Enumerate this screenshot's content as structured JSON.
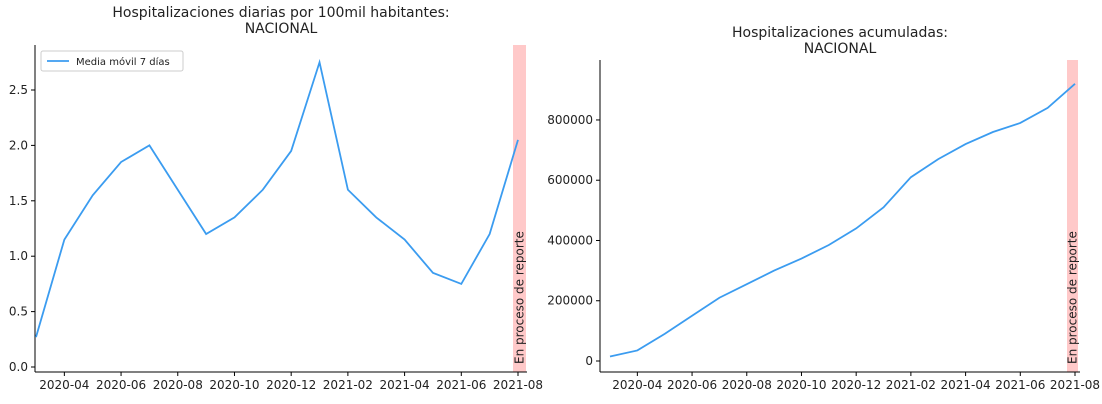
{
  "chart_data": [
    {
      "type": "line",
      "title": [
        "Hospitalizaciones diarias por 100mil habitantes:",
        "NACIONAL"
      ],
      "x": [
        "2020-03",
        "2020-04",
        "2020-05",
        "2020-06",
        "2020-07",
        "2020-08",
        "2020-09",
        "2020-10",
        "2020-11",
        "2020-12",
        "2021-01",
        "2021-02",
        "2021-03",
        "2021-04",
        "2021-05",
        "2021-06",
        "2021-07",
        "2021-08"
      ],
      "series": [
        {
          "name": "Media móvil 7 días",
          "color": "#3b9cf0",
          "values": [
            0.27,
            1.15,
            1.55,
            1.85,
            2.0,
            1.6,
            1.2,
            1.35,
            1.6,
            1.95,
            2.75,
            1.6,
            1.35,
            1.15,
            0.85,
            0.75,
            1.2,
            2.05
          ]
        }
      ],
      "xlim": [
        "2020-03",
        "2021-08"
      ],
      "xticks": [
        "2020-04",
        "2020-06",
        "2020-08",
        "2020-10",
        "2020-12",
        "2021-02",
        "2021-04",
        "2021-06",
        "2021-08"
      ],
      "ylim": [
        -0.045,
        2.906
      ],
      "yticks": [
        {
          "value": 0,
          "label": "0.0"
        },
        0.5,
        {
          "value": 1,
          "label": "1.0"
        },
        1.5,
        {
          "value": 2,
          "label": "2.0"
        },
        2.5
      ],
      "annotation": "En proceso de reporte",
      "legend": "upper left"
    },
    {
      "type": "line",
      "title": [
        "Hospitalizaciones acumuladas:",
        "NACIONAL"
      ],
      "x": [
        "2020-03",
        "2020-04",
        "2020-05",
        "2020-06",
        "2020-07",
        "2020-08",
        "2020-09",
        "2020-10",
        "2020-11",
        "2020-12",
        "2021-01",
        "2021-02",
        "2021-03",
        "2021-04",
        "2021-05",
        "2021-06",
        "2021-07",
        "2021-08"
      ],
      "series": [
        {
          "color": "#3b9cf0",
          "values": [
            15000,
            35000,
            90000,
            150000,
            210000,
            255000,
            300000,
            340000,
            385000,
            440000,
            510000,
            610000,
            670000,
            720000,
            760000,
            790000,
            840000,
            920000
          ]
        }
      ],
      "xlim": [
        "2020-03",
        "2021-08"
      ],
      "xticks": [
        "2020-04",
        "2020-06",
        "2020-08",
        "2020-10",
        "2020-12",
        "2021-02",
        "2021-04",
        "2021-06",
        "2021-08"
      ],
      "ylim": [
        -36500,
        999000
      ],
      "yticks": [
        0,
        200000,
        400000,
        600000,
        800000
      ],
      "annotation": "En proceso de reporte"
    }
  ]
}
